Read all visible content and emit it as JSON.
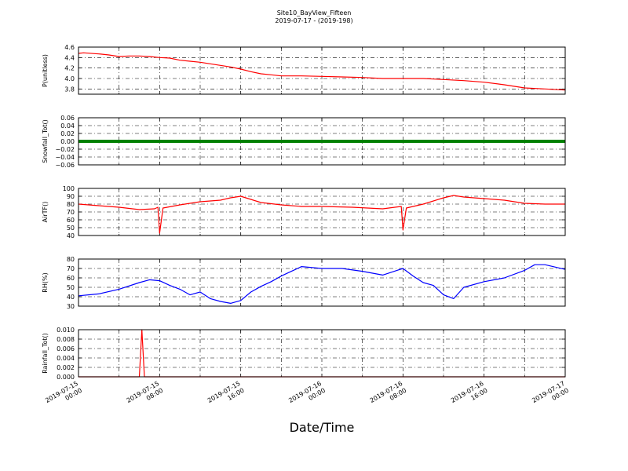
{
  "figure": {
    "title": "Site10_BayView_Fifteen",
    "subtitle": "2019-07-17 - (2019-198)",
    "xlabel": "Date/Time"
  },
  "x_ticks": [
    {
      "line1": "2019-07-15",
      "line2": "00:00"
    },
    {
      "line1": "2019-07-15",
      "line2": "08:00"
    },
    {
      "line1": "2019-07-15",
      "line2": "16:00"
    },
    {
      "line1": "2019-07-16",
      "line2": "00:00"
    },
    {
      "line1": "2019-07-16",
      "line2": "08:00"
    },
    {
      "line1": "2019-07-16",
      "line2": "16:00"
    },
    {
      "line1": "2019-07-17",
      "line2": "00:00"
    }
  ],
  "chart_data": [
    {
      "type": "line",
      "ylabel": "P(unitless)",
      "ylim": [
        3.7,
        4.6
      ],
      "yticks": [
        "3.8",
        "4.0",
        "4.2",
        "4.4",
        "4.6"
      ],
      "ytick_values": [
        3.8,
        4.0,
        4.2,
        4.4,
        4.6
      ],
      "xlim": [
        "2019-07-15 00:00",
        "2019-07-17 00:00"
      ],
      "grid": true,
      "series": [
        {
          "color": "#ff0000",
          "x": [
            "2019-07-15 00:00",
            "2019-07-15 00:30",
            "2019-07-15 02:00",
            "2019-07-15 03:00",
            "2019-07-15 04:00",
            "2019-07-15 05:00",
            "2019-07-15 06:00",
            "2019-07-15 07:00",
            "2019-07-15 08:00",
            "2019-07-15 09:00",
            "2019-07-15 10:00",
            "2019-07-15 11:00",
            "2019-07-15 12:00",
            "2019-07-15 13:00",
            "2019-07-15 14:00",
            "2019-07-15 15:00",
            "2019-07-15 16:00",
            "2019-07-15 17:00",
            "2019-07-15 18:00",
            "2019-07-15 19:00",
            "2019-07-15 20:00",
            "2019-07-15 22:00",
            "2019-07-16 00:00",
            "2019-07-16 02:00",
            "2019-07-16 04:00",
            "2019-07-16 06:00",
            "2019-07-16 08:00",
            "2019-07-16 10:00",
            "2019-07-16 12:00",
            "2019-07-16 14:00",
            "2019-07-16 16:00",
            "2019-07-16 18:00",
            "2019-07-16 20:00",
            "2019-07-16 22:00",
            "2019-07-17 00:00"
          ],
          "y": [
            4.48,
            4.49,
            4.47,
            4.45,
            4.42,
            4.43,
            4.43,
            4.42,
            4.4,
            4.39,
            4.35,
            4.33,
            4.31,
            4.28,
            4.25,
            4.22,
            4.18,
            4.13,
            4.09,
            4.07,
            4.05,
            4.05,
            4.04,
            4.03,
            4.02,
            4.0,
            4.0,
            4.0,
            3.98,
            3.96,
            3.93,
            3.88,
            3.82,
            3.8,
            3.78
          ]
        }
      ]
    },
    {
      "type": "line",
      "ylabel": "Snowfall_Tot()",
      "ylim": [
        -0.06,
        0.06
      ],
      "yticks": [
        "−0.06",
        "−0.04",
        "−0.02",
        "0.00",
        "0.02",
        "0.04",
        "0.06"
      ],
      "ytick_values": [
        -0.06,
        -0.04,
        -0.02,
        0.0,
        0.02,
        0.04,
        0.06
      ],
      "xlim": [
        "2019-07-15 00:00",
        "2019-07-17 00:00"
      ],
      "grid": true,
      "series": [
        {
          "color": "#008000",
          "x": [
            "2019-07-15 00:00",
            "2019-07-17 00:00"
          ],
          "y": [
            0,
            0
          ]
        }
      ]
    },
    {
      "type": "line",
      "ylabel": "AirTF()",
      "ylim": [
        40,
        100
      ],
      "yticks": [
        "40",
        "50",
        "60",
        "70",
        "80",
        "90",
        "100"
      ],
      "ytick_values": [
        40,
        50,
        60,
        70,
        80,
        90,
        100
      ],
      "xlim": [
        "2019-07-15 00:00",
        "2019-07-17 00:00"
      ],
      "grid": true,
      "series": [
        {
          "color": "#ff0000",
          "x": [
            "2019-07-15 00:00",
            "2019-07-15 01:00",
            "2019-07-15 02:00",
            "2019-07-15 04:00",
            "2019-07-15 06:00",
            "2019-07-15 07:30",
            "2019-07-15 07:50",
            "2019-07-15 08:00",
            "2019-07-15 08:20",
            "2019-07-15 10:00",
            "2019-07-15 12:00",
            "2019-07-15 14:00",
            "2019-07-15 15:00",
            "2019-07-15 16:00",
            "2019-07-15 17:00",
            "2019-07-15 18:00",
            "2019-07-15 20:00",
            "2019-07-15 22:00",
            "2019-07-16 00:00",
            "2019-07-16 03:00",
            "2019-07-16 06:00",
            "2019-07-16 07:50",
            "2019-07-16 08:00",
            "2019-07-16 08:20",
            "2019-07-16 10:00",
            "2019-07-16 12:00",
            "2019-07-16 13:00",
            "2019-07-16 14:00",
            "2019-07-16 16:00",
            "2019-07-16 18:00",
            "2019-07-16 20:00",
            "2019-07-16 22:00",
            "2019-07-17 00:00"
          ],
          "y": [
            80,
            79,
            78,
            76,
            73,
            74,
            76,
            43,
            75,
            79,
            83,
            85,
            88,
            90,
            86,
            82,
            79,
            77,
            77,
            76,
            74,
            77,
            47,
            75,
            80,
            88,
            91,
            89,
            87,
            85,
            81,
            80,
            80
          ]
        }
      ]
    },
    {
      "type": "line",
      "ylabel": "RH(%)",
      "ylim": [
        30,
        80
      ],
      "yticks": [
        "30",
        "40",
        "50",
        "60",
        "70",
        "80"
      ],
      "ytick_values": [
        30,
        40,
        50,
        60,
        70,
        80
      ],
      "xlim": [
        "2019-07-15 00:00",
        "2019-07-17 00:00"
      ],
      "grid": true,
      "series": [
        {
          "color": "#0000ff",
          "x": [
            "2019-07-15 00:00",
            "2019-07-15 02:00",
            "2019-07-15 04:00",
            "2019-07-15 06:00",
            "2019-07-15 07:00",
            "2019-07-15 08:00",
            "2019-07-15 09:00",
            "2019-07-15 10:00",
            "2019-07-15 11:00",
            "2019-07-15 12:00",
            "2019-07-15 13:00",
            "2019-07-15 14:00",
            "2019-07-15 15:00",
            "2019-07-15 16:00",
            "2019-07-15 17:00",
            "2019-07-15 18:00",
            "2019-07-15 19:00",
            "2019-07-15 20:00",
            "2019-07-15 21:00",
            "2019-07-15 22:00",
            "2019-07-16 00:00",
            "2019-07-16 02:00",
            "2019-07-16 04:00",
            "2019-07-16 06:00",
            "2019-07-16 08:00",
            "2019-07-16 09:00",
            "2019-07-16 10:00",
            "2019-07-16 11:00",
            "2019-07-16 12:00",
            "2019-07-16 13:00",
            "2019-07-16 14:00",
            "2019-07-16 16:00",
            "2019-07-16 18:00",
            "2019-07-16 20:00",
            "2019-07-16 21:00",
            "2019-07-16 22:00",
            "2019-07-17 00:00"
          ],
          "y": [
            41,
            43,
            48,
            55,
            58,
            57,
            52,
            48,
            42,
            45,
            38,
            35,
            33,
            36,
            45,
            51,
            56,
            62,
            67,
            72,
            70,
            70,
            67,
            63,
            70,
            62,
            55,
            52,
            42,
            38,
            50,
            56,
            60,
            68,
            74,
            74,
            69
          ]
        }
      ]
    },
    {
      "type": "line",
      "ylabel": "Rainfall_Tot()",
      "ylim": [
        0,
        0.01
      ],
      "yticks": [
        "0.000",
        "0.002",
        "0.004",
        "0.006",
        "0.008",
        "0.010"
      ],
      "ytick_values": [
        0,
        0.002,
        0.004,
        0.006,
        0.008,
        0.01
      ],
      "xlim": [
        "2019-07-15 00:00",
        "2019-07-17 00:00"
      ],
      "grid": true,
      "series": [
        {
          "color": "#ff0000",
          "x": [
            "2019-07-15 00:00",
            "2019-07-15 06:00",
            "2019-07-15 06:15",
            "2019-07-15 06:30",
            "2019-07-17 00:00"
          ],
          "y": [
            0,
            0,
            0.01,
            0,
            0
          ]
        }
      ]
    }
  ]
}
